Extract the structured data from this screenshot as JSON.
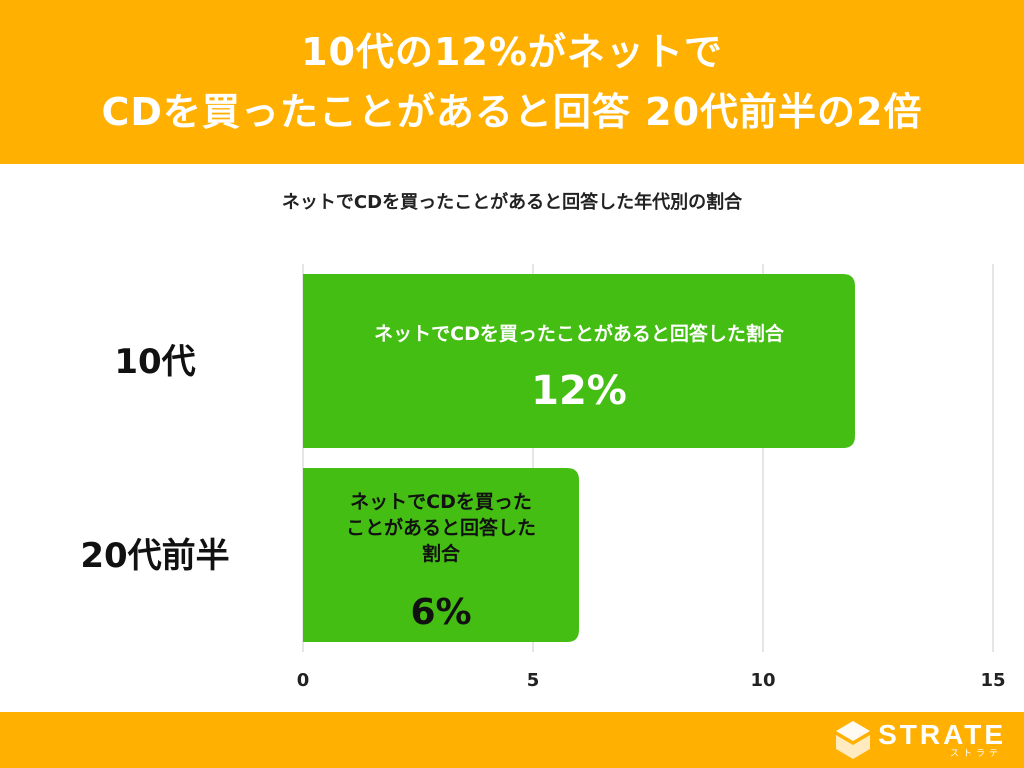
{
  "header": {
    "line1": "10代の12%がネットで",
    "line2": "CDを買ったことがあると回答 20代前半の2倍"
  },
  "subtitle": "ネットでCDを買ったことがあると回答した年代別の割合",
  "colors": {
    "header_bg": "#FFB000",
    "bar": "#45BE14",
    "grid": "#DDDDDD",
    "white": "#FFFFFF"
  },
  "chart_data": {
    "type": "bar",
    "orientation": "horizontal",
    "title": "ネットでCDを買ったことがあると回答した年代別の割合",
    "categories": [
      "10代",
      "20代前半"
    ],
    "values": [
      12,
      6
    ],
    "value_labels": [
      "12%",
      "6%"
    ],
    "bar_text": [
      "ネットでCDを買ったことがあると回答した割合",
      "ネットでCDを買ったことがあると回答した割合"
    ],
    "bar_text_lines": [
      [
        "ネットでCDを買ったことがあると回答した割合"
      ],
      [
        "ネットでCDを買った",
        "ことがあると回答した",
        "割合"
      ]
    ],
    "xlim": [
      0,
      15
    ],
    "xticks": [
      0,
      5,
      10,
      15
    ],
    "grid": true
  },
  "logo": {
    "name": "STRATE",
    "sub": "ストラテ"
  }
}
